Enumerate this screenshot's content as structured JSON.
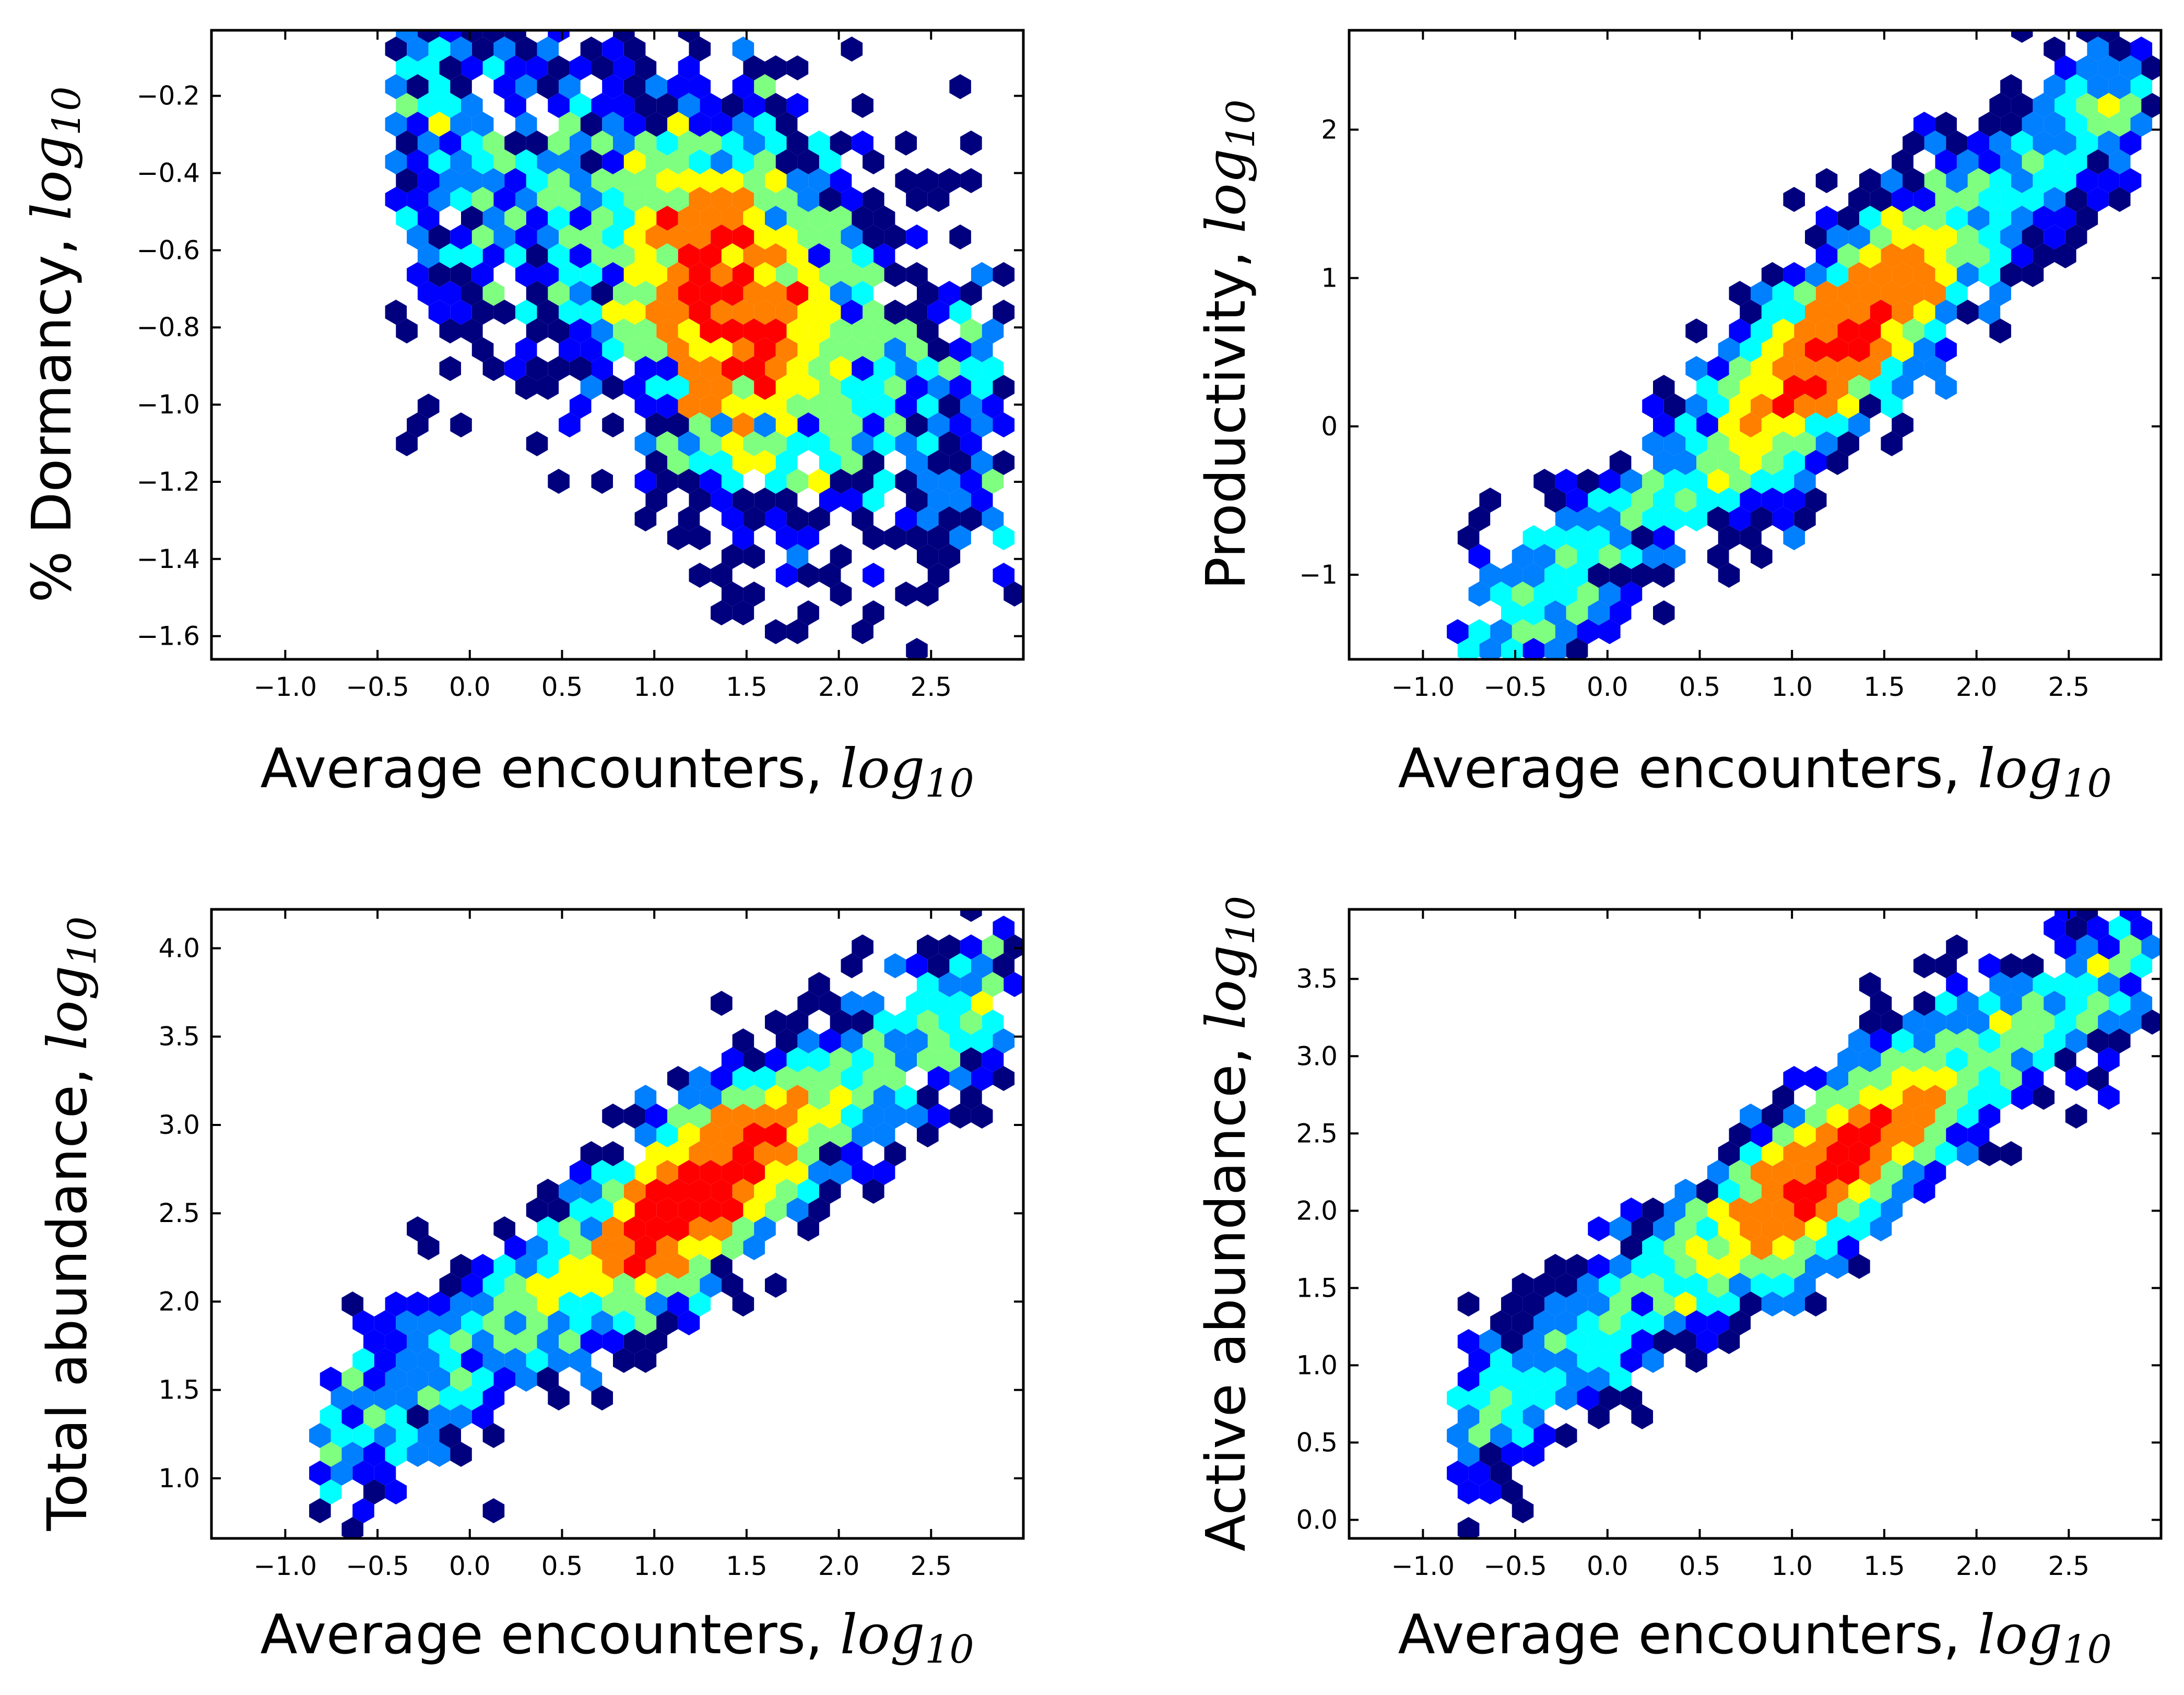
{
  "chart_data": [
    {
      "type": "hexbin",
      "xlabel": "Average encounters, ",
      "ylabel": "% Dormancy, ",
      "label_math": "log",
      "label_sub": "10",
      "xlim": [
        -1.4,
        3.0
      ],
      "ylim": [
        -1.66,
        -0.03
      ],
      "xticks": [
        "−1.0",
        "−0.5",
        "0.0",
        "0.5",
        "1.0",
        "1.5",
        "2.0",
        "2.5"
      ],
      "xtick_values": [
        -1.0,
        -0.5,
        0.0,
        0.5,
        1.0,
        1.5,
        2.0,
        2.5
      ],
      "yticks": [
        "−1.6",
        "−1.4",
        "−1.2",
        "−1.0",
        "−0.8",
        "−0.6",
        "−0.4",
        "−0.2"
      ],
      "ytick_values": [
        -1.6,
        -1.4,
        -1.2,
        -1.0,
        -0.8,
        -0.6,
        -0.4,
        -0.2
      ],
      "density_center": [
        1.4,
        -1.05
      ],
      "trend": {
        "x": [
          -0.8,
          2.9
        ],
        "y": [
          -0.25,
          -1.05
        ]
      },
      "spread": 0.2,
      "x_range_points": [
        -0.4,
        2.9
      ],
      "seed": 11,
      "n_points": 2600
    },
    {
      "type": "hexbin",
      "xlabel": "Average encounters, ",
      "ylabel": "Productivity, ",
      "label_math": "log",
      "label_sub": "10",
      "xlim": [
        -1.4,
        3.0
      ],
      "ylim": [
        -1.57,
        2.67
      ],
      "xticks": [
        "−1.0",
        "−0.5",
        "0.0",
        "0.5",
        "1.0",
        "1.5",
        "2.0",
        "2.5"
      ],
      "xtick_values": [
        -1.0,
        -0.5,
        0.0,
        0.5,
        1.0,
        1.5,
        2.0,
        2.5
      ],
      "yticks": [
        "−1",
        "0",
        "1",
        "2"
      ],
      "ytick_values": [
        -1,
        0,
        1,
        2
      ],
      "density_center": [
        1.25,
        0.0
      ],
      "trend": {
        "x": [
          -0.3,
          2.5
        ],
        "y": [
          -1.1,
          1.9
        ]
      },
      "spread": 0.25,
      "x_range_points": [
        -0.8,
        2.9
      ],
      "seed": 23,
      "n_points": 2600
    },
    {
      "type": "hexbin",
      "xlabel": "Average encounters, ",
      "ylabel": "Total abundance, ",
      "label_math": "log",
      "label_sub": "10",
      "xlim": [
        -1.4,
        3.0
      ],
      "ylim": [
        0.66,
        4.22
      ],
      "xticks": [
        "−1.0",
        "−0.5",
        "0.0",
        "0.5",
        "1.0",
        "1.5",
        "2.0",
        "2.5"
      ],
      "xtick_values": [
        -1.0,
        -0.5,
        0.0,
        0.5,
        1.0,
        1.5,
        2.0,
        2.5
      ],
      "yticks": [
        "1.0",
        "1.5",
        "2.0",
        "2.5",
        "3.0",
        "3.5",
        "4.0"
      ],
      "ytick_values": [
        1.0,
        1.5,
        2.0,
        2.5,
        3.0,
        3.5,
        4.0
      ],
      "density_center": [
        1.2,
        2.2
      ],
      "trend": {
        "x": [
          -0.8,
          2.6
        ],
        "y": [
          1.15,
          3.6
        ]
      },
      "spread": 0.2,
      "x_range_points": [
        -0.8,
        2.9
      ],
      "seed": 37,
      "n_points": 2600
    },
    {
      "type": "hexbin",
      "xlabel": "Average encounters, ",
      "ylabel": "Active abundance, ",
      "label_math": "log",
      "label_sub": "10",
      "xlim": [
        -1.4,
        3.0
      ],
      "ylim": [
        -0.12,
        3.95
      ],
      "xticks": [
        "−1.0",
        "−0.5",
        "0.0",
        "0.5",
        "1.0",
        "1.5",
        "2.0",
        "2.5"
      ],
      "xtick_values": [
        -1.0,
        -0.5,
        0.0,
        0.5,
        1.0,
        1.5,
        2.0,
        2.5
      ],
      "yticks": [
        "0.0",
        "0.5",
        "1.0",
        "1.5",
        "2.0",
        "2.5",
        "3.0",
        "3.5"
      ],
      "ytick_values": [
        0.0,
        0.5,
        1.0,
        1.5,
        2.0,
        2.5,
        3.0,
        3.5
      ],
      "density_center": [
        1.2,
        2.3
      ],
      "trend": {
        "x": [
          -0.8,
          2.6
        ],
        "y": [
          0.6,
          3.45
        ]
      },
      "spread": 0.2,
      "x_range_points": [
        -0.8,
        2.9
      ],
      "seed": 53,
      "n_points": 2600
    }
  ],
  "colormap": [
    "#00007f",
    "#0000ff",
    "#007fff",
    "#00ffff",
    "#7fff7f",
    "#ffff00",
    "#ff7f00",
    "#ff0000",
    "#7f0000"
  ]
}
